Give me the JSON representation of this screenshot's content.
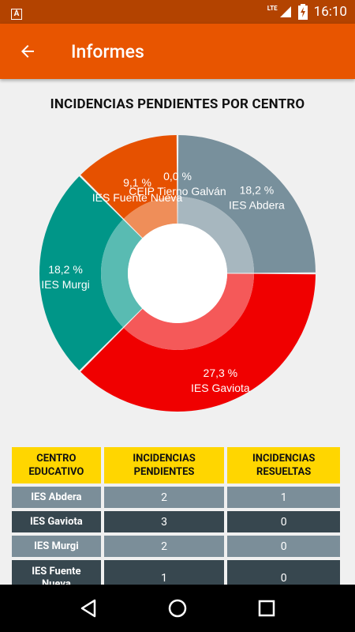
{
  "status_bar": {
    "time": "16:10",
    "network": "LTE",
    "icons": [
      "app-notification-icon",
      "signal-icon",
      "battery-charging-icon"
    ]
  },
  "app_bar": {
    "title": "Informes",
    "back_icon": "arrow-back-icon"
  },
  "chart_data": {
    "type": "pie",
    "title": "INCIDENCIAS PENDIENTES POR CENTRO",
    "style": "donut",
    "slices": [
      {
        "label": "IES Abdera",
        "percent_label": "18,2 %",
        "value": 2,
        "color": "#78909c"
      },
      {
        "label": "IES Gaviota",
        "percent_label": "27,3 %",
        "value": 3,
        "color": "#f00000"
      },
      {
        "label": "IES Murgi",
        "percent_label": "18,2 %",
        "value": 2,
        "color": "#009688"
      },
      {
        "label": "IES Fuente Nueva",
        "percent_label": "9,1 %",
        "value": 1,
        "color": "#e65100"
      },
      {
        "label": "CEIP Tierno Galván",
        "percent_label": "0,0 %",
        "value": 0,
        "color": "#ffd600"
      }
    ]
  },
  "table": {
    "headers": [
      "CENTRO\nEDUCATIVO",
      "INCIDENCIAS\nPENDIENTES",
      "INCIDENCIAS\nRESUELTAS"
    ],
    "rows": [
      {
        "name": "IES Abdera",
        "pendientes": "2",
        "resueltas": "1"
      },
      {
        "name": "IES Gaviota",
        "pendientes": "3",
        "resueltas": "0"
      },
      {
        "name": "IES Murgi",
        "pendientes": "2",
        "resueltas": "0"
      },
      {
        "name": "IES Fuente\nNueva",
        "pendientes": "1",
        "resueltas": "0"
      }
    ]
  },
  "nav_bar": {
    "icons": [
      "back-triangle-icon",
      "home-circle-icon",
      "recents-square-icon"
    ]
  }
}
